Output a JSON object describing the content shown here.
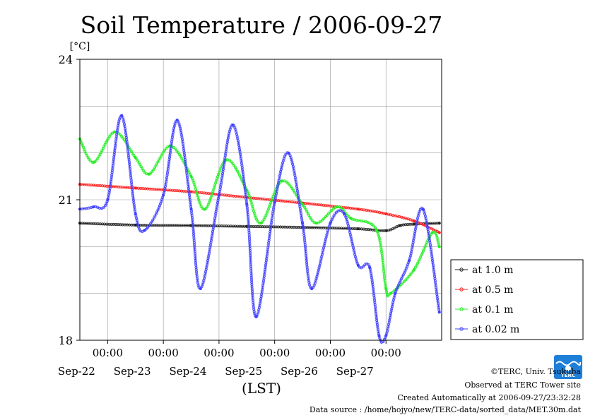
{
  "chart_data": {
    "type": "line",
    "title": "Soil Temperature / 2006-09-27",
    "unit_label": "[°C]",
    "xlabel": "(LST)",
    "ylim": [
      18,
      24
    ],
    "yticks": [
      18,
      21,
      24
    ],
    "xlim": [
      "2006-09-21T12:00",
      "2006-09-28T00:00"
    ],
    "xticks": [
      {
        "time": "2006-09-22T00:00",
        "time_label": "00:00",
        "date_label": "Sep-22"
      },
      {
        "time": "2006-09-23T00:00",
        "time_label": "00:00",
        "date_label": "Sep-23"
      },
      {
        "time": "2006-09-24T00:00",
        "time_label": "00:00",
        "date_label": "Sep-24"
      },
      {
        "time": "2006-09-25T00:00",
        "time_label": "00:00",
        "date_label": "Sep-25"
      },
      {
        "time": "2006-09-26T00:00",
        "time_label": "00:00",
        "date_label": "Sep-26"
      },
      {
        "time": "2006-09-27T00:00",
        "time_label": "00:00",
        "date_label": "Sep-27"
      }
    ],
    "grid": true,
    "legend_position": "right",
    "series": [
      {
        "name": "at 1.0 m",
        "color": "#202020",
        "x": [
          "2006-09-21T12:00",
          "2006-09-22T12:00",
          "2006-09-23T12:00",
          "2006-09-24T12:00",
          "2006-09-25T12:00",
          "2006-09-26T12:00",
          "2006-09-27T00:00",
          "2006-09-27T06:00",
          "2006-09-27T12:00",
          "2006-09-27T23:00"
        ],
        "values": [
          20.5,
          20.46,
          20.45,
          20.43,
          20.41,
          20.38,
          20.34,
          20.45,
          20.48,
          20.5
        ]
      },
      {
        "name": "at 0.5 m",
        "color": "#ff2020",
        "x": [
          "2006-09-21T12:00",
          "2006-09-22T12:00",
          "2006-09-23T12:00",
          "2006-09-24T12:00",
          "2006-09-25T12:00",
          "2006-09-26T12:00",
          "2006-09-27T00:00",
          "2006-09-27T12:00",
          "2006-09-27T23:00"
        ],
        "values": [
          21.33,
          21.25,
          21.17,
          21.05,
          20.93,
          20.8,
          20.7,
          20.55,
          20.3
        ]
      },
      {
        "name": "at 0.1 m",
        "color": "#22ee22",
        "x": [
          "2006-09-21T12:00",
          "2006-09-21T18:00",
          "2006-09-22T03:00",
          "2006-09-22T12:00",
          "2006-09-22T18:00",
          "2006-09-23T03:00",
          "2006-09-23T12:00",
          "2006-09-23T18:00",
          "2006-09-24T03:00",
          "2006-09-24T12:00",
          "2006-09-24T18:00",
          "2006-09-25T03:00",
          "2006-09-25T12:00",
          "2006-09-25T18:00",
          "2006-09-26T03:00",
          "2006-09-26T09:00",
          "2006-09-26T20:00",
          "2006-09-27T00:00",
          "2006-09-27T02:00",
          "2006-09-27T12:00",
          "2006-09-27T20:00",
          "2006-09-27T23:00"
        ],
        "values": [
          22.3,
          21.8,
          22.45,
          21.9,
          21.55,
          22.15,
          21.5,
          20.8,
          21.85,
          21.2,
          20.5,
          21.4,
          20.9,
          20.5,
          20.85,
          20.6,
          20.35,
          19.1,
          19.0,
          19.5,
          20.3,
          20.0
        ]
      },
      {
        "name": "at 0.02 m",
        "color": "#4040ff",
        "x": [
          "2006-09-21T12:00",
          "2006-09-21T18:00",
          "2006-09-22T00:00",
          "2006-09-22T06:00",
          "2006-09-22T12:00",
          "2006-09-22T16:00",
          "2006-09-23T00:00",
          "2006-09-23T06:00",
          "2006-09-23T12:00",
          "2006-09-23T16:00",
          "2006-09-24T00:00",
          "2006-09-24T06:00",
          "2006-09-24T12:00",
          "2006-09-24T16:00",
          "2006-09-25T00:00",
          "2006-09-25T06:00",
          "2006-09-25T12:00",
          "2006-09-25T16:00",
          "2006-09-26T00:00",
          "2006-09-26T06:00",
          "2006-09-26T12:00",
          "2006-09-26T17:00",
          "2006-09-26T21:00",
          "2006-09-27T00:00",
          "2006-09-27T04:00",
          "2006-09-27T10:00",
          "2006-09-27T16:00",
          "2006-09-27T23:00"
        ],
        "values": [
          20.8,
          20.85,
          21.0,
          22.8,
          20.7,
          20.35,
          21.1,
          22.7,
          20.8,
          19.1,
          21.1,
          22.6,
          20.9,
          18.5,
          20.95,
          22.0,
          20.5,
          19.1,
          20.5,
          20.7,
          19.6,
          19.55,
          18.1,
          18.1,
          19.0,
          19.7,
          20.8,
          18.6
        ]
      }
    ]
  },
  "footer": {
    "copyright": "©TERC, Univ. Tsukuba",
    "observed": "Observed at TERC Tower site",
    "created": "Created Automatically at 2006-09-27/23:32:28",
    "source": "Data source : /home/hojyo/new/TERC-data/sorted_data/MET.30m.dat"
  },
  "logo": {
    "text": "TERC",
    "color": "#1e7fd8"
  }
}
